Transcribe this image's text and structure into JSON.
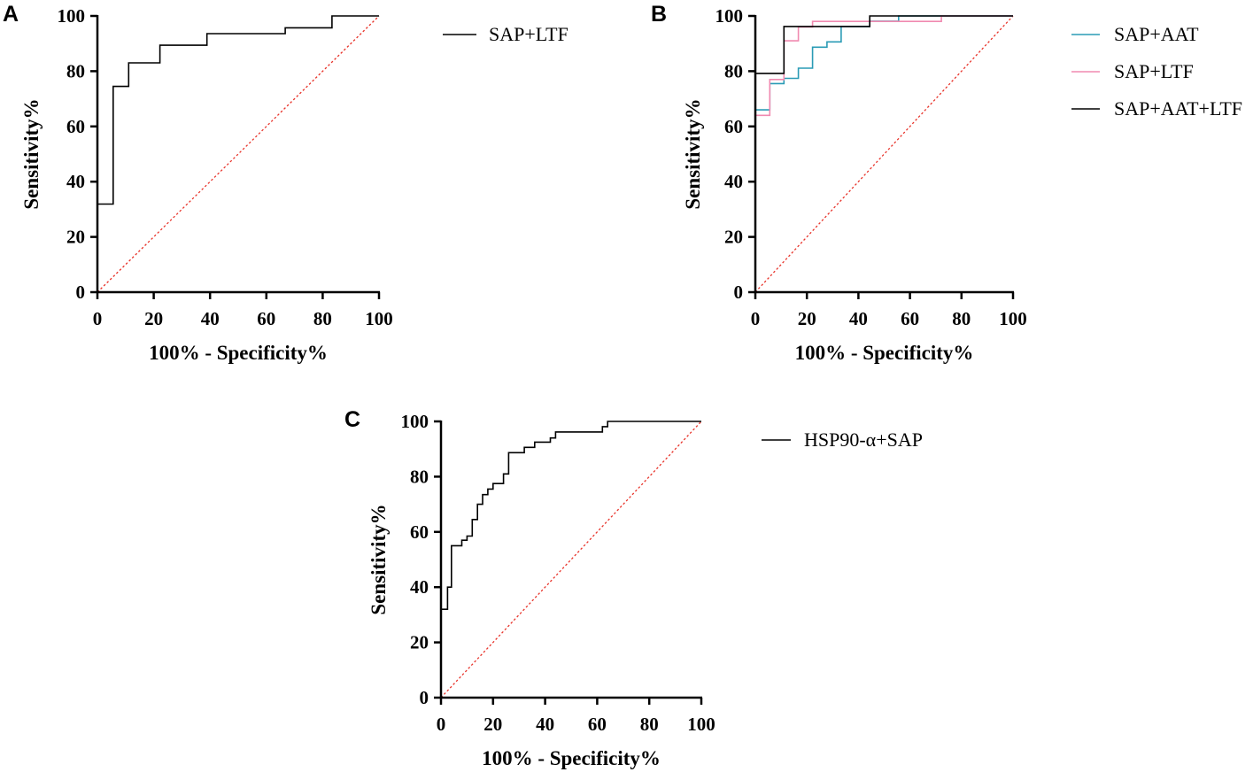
{
  "chart_data": [
    {
      "panel": "A",
      "type": "line",
      "title": "",
      "xlabel": "100% - Specificity%",
      "ylabel": "Sensitivity%",
      "xlim": [
        0,
        100
      ],
      "ylim": [
        0,
        100
      ],
      "xticks": [
        "0",
        "20",
        "40",
        "60",
        "80",
        "100"
      ],
      "yticks": [
        "0",
        "20",
        "40",
        "60",
        "80",
        "100"
      ],
      "reference_line": {
        "name": "reference",
        "color": "#e8332a",
        "points": [
          [
            0,
            0
          ],
          [
            100,
            100
          ]
        ]
      },
      "legend": "right",
      "series": [
        {
          "name": "SAP+LTF",
          "color": "#000000",
          "points": [
            [
              0,
              0
            ],
            [
              0,
              31.9
            ],
            [
              5.6,
              31.9
            ],
            [
              5.6,
              74.5
            ],
            [
              11.1,
              74.5
            ],
            [
              11.1,
              83
            ],
            [
              22.2,
              83
            ],
            [
              22.2,
              89.4
            ],
            [
              38.9,
              89.4
            ],
            [
              38.9,
              93.6
            ],
            [
              66.7,
              93.6
            ],
            [
              66.7,
              95.7
            ],
            [
              83.3,
              95.7
            ],
            [
              83.3,
              100
            ],
            [
              100,
              100
            ]
          ]
        }
      ]
    },
    {
      "panel": "B",
      "type": "line",
      "title": "",
      "xlabel": "100% - Specificity%",
      "ylabel": "Sensitivity%",
      "xlim": [
        0,
        100
      ],
      "ylim": [
        0,
        100
      ],
      "xticks": [
        "0",
        "20",
        "40",
        "60",
        "80",
        "100"
      ],
      "yticks": [
        "0",
        "20",
        "40",
        "60",
        "80",
        "100"
      ],
      "reference_line": {
        "name": "reference",
        "color": "#e8332a",
        "points": [
          [
            0,
            0
          ],
          [
            100,
            100
          ]
        ]
      },
      "legend": "right",
      "series": [
        {
          "name": "SAP+AAT",
          "color": "#2a9bb5",
          "points": [
            [
              0,
              0
            ],
            [
              0,
              66
            ],
            [
              5.6,
              66
            ],
            [
              5.6,
              75.5
            ],
            [
              11.1,
              75.5
            ],
            [
              11.1,
              77.4
            ],
            [
              16.7,
              77.4
            ],
            [
              16.7,
              81.1
            ],
            [
              22.2,
              81.1
            ],
            [
              22.2,
              88.7
            ],
            [
              27.8,
              88.7
            ],
            [
              27.8,
              90.6
            ],
            [
              33.3,
              90.6
            ],
            [
              33.3,
              96.2
            ],
            [
              44.4,
              96.2
            ],
            [
              44.4,
              98.1
            ],
            [
              55.6,
              98.1
            ],
            [
              55.6,
              100
            ],
            [
              100,
              100
            ]
          ]
        },
        {
          "name": "SAP+LTF",
          "color": "#f08ab0",
          "points": [
            [
              0,
              0
            ],
            [
              0,
              64
            ],
            [
              5.6,
              64
            ],
            [
              5.6,
              77
            ],
            [
              11.1,
              77
            ],
            [
              11.1,
              91
            ],
            [
              16.7,
              91
            ],
            [
              16.7,
              96
            ],
            [
              22.2,
              96
            ],
            [
              22.2,
              98
            ],
            [
              72.2,
              98
            ],
            [
              72.2,
              100
            ],
            [
              100,
              100
            ]
          ]
        },
        {
          "name": "SAP+AAT+LTF",
          "color": "#000000",
          "points": [
            [
              0,
              0
            ],
            [
              0,
              79.2
            ],
            [
              11.1,
              79.2
            ],
            [
              11.1,
              96.2
            ],
            [
              44.4,
              96.2
            ],
            [
              44.4,
              100
            ],
            [
              100,
              100
            ]
          ]
        }
      ]
    },
    {
      "panel": "C",
      "type": "line",
      "title": "",
      "xlabel": "100% - Specificity%",
      "ylabel": "Sensitivity%",
      "xlim": [
        0,
        100
      ],
      "ylim": [
        0,
        100
      ],
      "xticks": [
        "0",
        "20",
        "40",
        "60",
        "80",
        "100"
      ],
      "yticks": [
        "0",
        "20",
        "40",
        "60",
        "80",
        "100"
      ],
      "reference_line": {
        "name": "reference",
        "color": "#e8332a",
        "points": [
          [
            0,
            0
          ],
          [
            100,
            100
          ]
        ]
      },
      "legend": "right",
      "series": [
        {
          "name": "HSP90-α+SAP",
          "color": "#000000",
          "points": [
            [
              0,
              0
            ],
            [
              0,
              32
            ],
            [
              2.5,
              32
            ],
            [
              2.5,
              40
            ],
            [
              4,
              40
            ],
            [
              4,
              55
            ],
            [
              8,
              55
            ],
            [
              8,
              57
            ],
            [
              10,
              57
            ],
            [
              10,
              58.5
            ],
            [
              12,
              58.5
            ],
            [
              12,
              64.5
            ],
            [
              14,
              64.5
            ],
            [
              14,
              70
            ],
            [
              16,
              70
            ],
            [
              16,
              73.5
            ],
            [
              18,
              73.5
            ],
            [
              18,
              75.5
            ],
            [
              20,
              75.5
            ],
            [
              20,
              77.5
            ],
            [
              24,
              77.5
            ],
            [
              24,
              81
            ],
            [
              26,
              81
            ],
            [
              26,
              88.7
            ],
            [
              32,
              88.7
            ],
            [
              32,
              90.6
            ],
            [
              36,
              90.6
            ],
            [
              36,
              92.5
            ],
            [
              42,
              92.5
            ],
            [
              42,
              94
            ],
            [
              44,
              94
            ],
            [
              44,
              96.2
            ],
            [
              62,
              96.2
            ],
            [
              62,
              98.1
            ],
            [
              64,
              98.1
            ],
            [
              64,
              100
            ],
            [
              100,
              100
            ]
          ]
        }
      ]
    }
  ]
}
